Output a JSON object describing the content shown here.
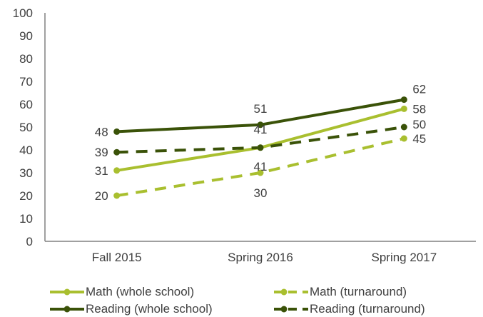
{
  "chart_data": {
    "type": "line",
    "categories": [
      "Fall 2015",
      "Spring 2016",
      "Spring 2017"
    ],
    "ylim": [
      0,
      100
    ],
    "yticks": [
      0,
      10,
      20,
      30,
      40,
      50,
      60,
      70,
      80,
      90,
      100
    ],
    "grid": false,
    "legend_position": "bottom",
    "series": [
      {
        "name": "Math (whole school)",
        "values": [
          31,
          41,
          58
        ],
        "color": "#a9bf2f",
        "dash": false
      },
      {
        "name": "Math (turnaround)",
        "values": [
          20,
          30,
          45
        ],
        "color": "#a9bf2f",
        "dash": true
      },
      {
        "name": "Reading (whole school)",
        "values": [
          48,
          51,
          62
        ],
        "color": "#3a5208",
        "dash": false
      },
      {
        "name": "Reading (turnaround)",
        "values": [
          39,
          41,
          50
        ],
        "color": "#3a5208",
        "dash": true
      }
    ]
  }
}
